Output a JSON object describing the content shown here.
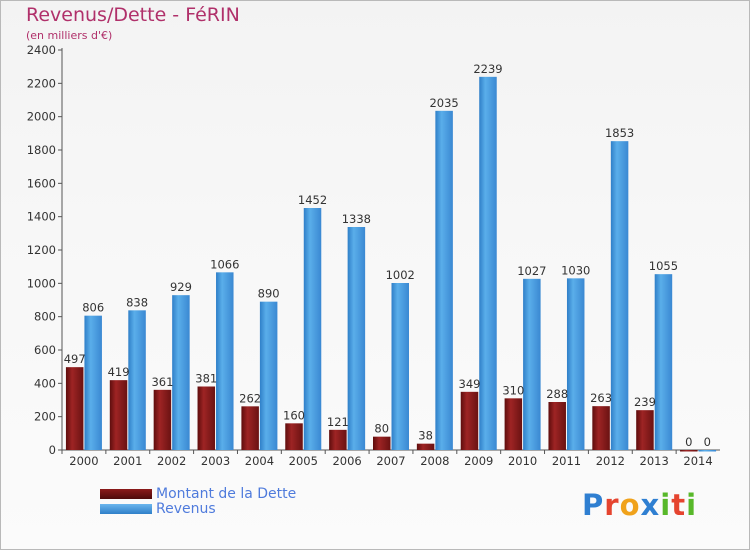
{
  "title": "Revenus/Dette - FéRIN",
  "subtitle": "(en milliers d'€)",
  "chart_data": {
    "type": "bar",
    "categories": [
      "2000",
      "2001",
      "2002",
      "2003",
      "2004",
      "2005",
      "2006",
      "2007",
      "2008",
      "2009",
      "2010",
      "2011",
      "2012",
      "2013",
      "2014"
    ],
    "series": [
      {
        "name": "Montant de la Dette",
        "color": "#8b1a1a",
        "values": [
          497,
          419,
          361,
          381,
          262,
          160,
          121,
          80,
          38,
          349,
          310,
          288,
          263,
          239,
          0
        ]
      },
      {
        "name": "Revenus",
        "color": "#3f94de",
        "values": [
          806,
          838,
          929,
          1066,
          890,
          1452,
          1338,
          1002,
          2035,
          2239,
          1027,
          1030,
          1853,
          1055,
          0
        ]
      }
    ],
    "y_ticks": [
      0,
      200,
      400,
      600,
      800,
      1000,
      1200,
      1400,
      1600,
      1800,
      2000,
      2200,
      2400
    ],
    "ylim": [
      0,
      2400
    ],
    "grid": false,
    "legend_position": "bottom-left"
  },
  "legend": {
    "items": [
      {
        "label": "Montant de la Dette"
      },
      {
        "label": "Revenus"
      }
    ]
  },
  "logo": {
    "letters": [
      "P",
      "r",
      "o",
      "x",
      "i",
      "t",
      "i"
    ],
    "colors": [
      "#2f7fd1",
      "#e5442f",
      "#f0a21b",
      "#2f7fd1",
      "#58b82a",
      "#e5442f",
      "#58b82a"
    ]
  }
}
